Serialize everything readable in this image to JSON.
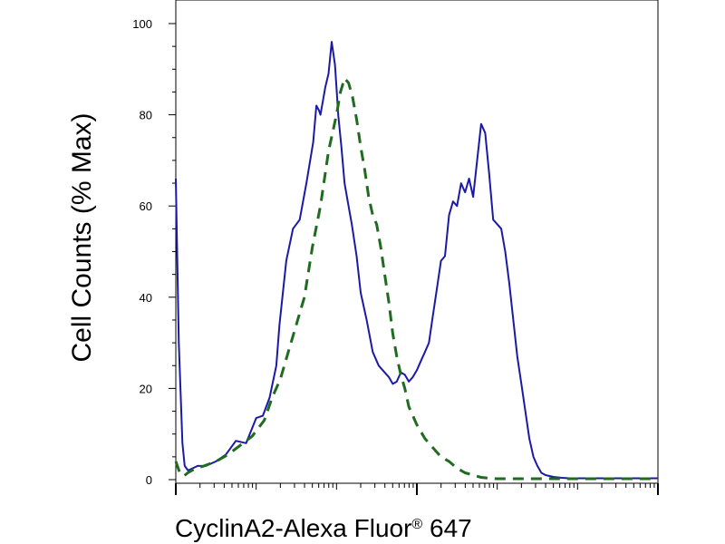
{
  "chart_data": {
    "type": "line",
    "title": "",
    "xlabel": "CyclinA2-Alexa Fluor",
    "xlabel_mark": "®",
    "xlabel_suffix": " 647",
    "ylabel": "Cell Counts (% Max)",
    "x_scale": "log",
    "xlim": [
      1,
      1000000
    ],
    "ylim": [
      0,
      100
    ],
    "y_ticks": [
      0,
      20,
      40,
      60,
      80,
      100
    ],
    "y_tick_labels": [
      "0",
      "20",
      "40",
      "60",
      "80",
      "100"
    ],
    "x_major_ticks": [
      1,
      1000,
      1000000
    ],
    "grid": false,
    "legend": "none",
    "series": [
      {
        "color": "#1a1aa6",
        "dash": "solid",
        "x": [
          1.0,
          1.09,
          1.21,
          1.29,
          1.42,
          1.63,
          1.87,
          2.37,
          3.16,
          4.2,
          5.6,
          7.5,
          10.0,
          12.1,
          14.7,
          17.8,
          19.5,
          23.7,
          28.7,
          34.8,
          42.2,
          51.3,
          56.2,
          60.3,
          63.1,
          66.1,
          72.4,
          79.4,
          87.1,
          95.5,
          100.0,
          105.0,
          115.0,
          126.0,
          141.0,
          155.0,
          178.0,
          200.0,
          237.0,
          282.0,
          335.0,
          398.0,
          447.0,
          501.0,
          562.0,
          631.0,
          708.0,
          794.0,
          891.0,
          1000.0,
          1122.0,
          1259.0,
          1413.0,
          1585.0,
          1778.0,
          1995.0,
          2239.0,
          2512.0,
          2818.0,
          3162.0,
          3548.0,
          3981.0,
          4467.0,
          5012.0,
          5623.0,
          6310.0,
          7080.0,
          7943.0,
          8913.0,
          10000.0,
          11220.0,
          12590.0,
          14130.0,
          15850.0,
          17780.0,
          19950.0,
          22390.0,
          25120.0,
          28180.0,
          31620.0,
          35480.0,
          39810.0,
          44670.0,
          50120.0,
          56230.0,
          63100.0,
          79430.0,
          100000.0,
          125900.0,
          158500.0,
          199500.0,
          251200.0,
          398100.0,
          631000.0,
          1000000.0
        ],
        "y": [
          66,
          30,
          8,
          3,
          2,
          2.5,
          3,
          3,
          4,
          5.5,
          8.5,
          8,
          13.5,
          14,
          18,
          25,
          34,
          48,
          55,
          57,
          65,
          74,
          82,
          81,
          80,
          82,
          86,
          89,
          96,
          91,
          86,
          80,
          73,
          65,
          60,
          56,
          49,
          41,
          35,
          28,
          25,
          23.5,
          22.5,
          21,
          21.5,
          23.5,
          23,
          21.5,
          22.5,
          24,
          26,
          28,
          30,
          36,
          42,
          48,
          49,
          58,
          61,
          60,
          65,
          63,
          66,
          62,
          70,
          78,
          76,
          67,
          57,
          56,
          55,
          50,
          43,
          35,
          27,
          21,
          15,
          9,
          5,
          3,
          1.5,
          1,
          0.8,
          0.6,
          0.5,
          0.4,
          0.3,
          0.3,
          0.3,
          0.3,
          0.3,
          0.3,
          0.3,
          0.3,
          0.3
        ]
      },
      {
        "color": "#1f6b1f",
        "dash": "dashed",
        "x": [
          1.0,
          1.12,
          1.26,
          1.41,
          1.78,
          2.24,
          3.16,
          4.47,
          6.31,
          8.91,
          12.6,
          15.8,
          19.95,
          25.1,
          31.6,
          39.8,
          50.1,
          63.1,
          79.4,
          100.0,
          112.0,
          126.0,
          141.0,
          158.0,
          178.0,
          200.0,
          224.0,
          251.0,
          282.0,
          316.0,
          355.0,
          398.0,
          447.0,
          501.0,
          562.0,
          631.0,
          708.0,
          794.0,
          1000.0,
          1259.0,
          1585.0,
          1995.0,
          2512.0,
          3162.0,
          3981.0,
          5012.0,
          6310.0,
          7943.0,
          10000.0,
          12590.0,
          15850.0,
          19950.0,
          25120.0,
          31620.0,
          39810.0,
          50120.0,
          63100.0,
          100000.0,
          158500.0,
          251200.0,
          398100.0,
          631000.0,
          1000000.0
        ],
        "y": [
          4,
          1.5,
          0.8,
          1.5,
          2.5,
          3,
          4,
          5.5,
          7.5,
          9.5,
          13,
          18,
          22,
          28,
          34,
          40,
          51,
          60,
          72,
          80,
          85,
          88,
          87,
          84,
          79,
          73,
          68,
          62,
          58,
          56,
          51,
          45,
          39,
          32,
          27,
          23,
          20,
          16,
          12,
          9,
          7,
          5,
          4,
          2.5,
          1.5,
          1,
          0.5,
          0.3,
          0.2,
          0.2,
          0.2,
          0.2,
          0.2,
          0.2,
          0.2,
          0.2,
          0.2,
          0.2,
          0.2,
          0.2,
          0.2,
          0.2,
          0.2
        ]
      }
    ]
  }
}
